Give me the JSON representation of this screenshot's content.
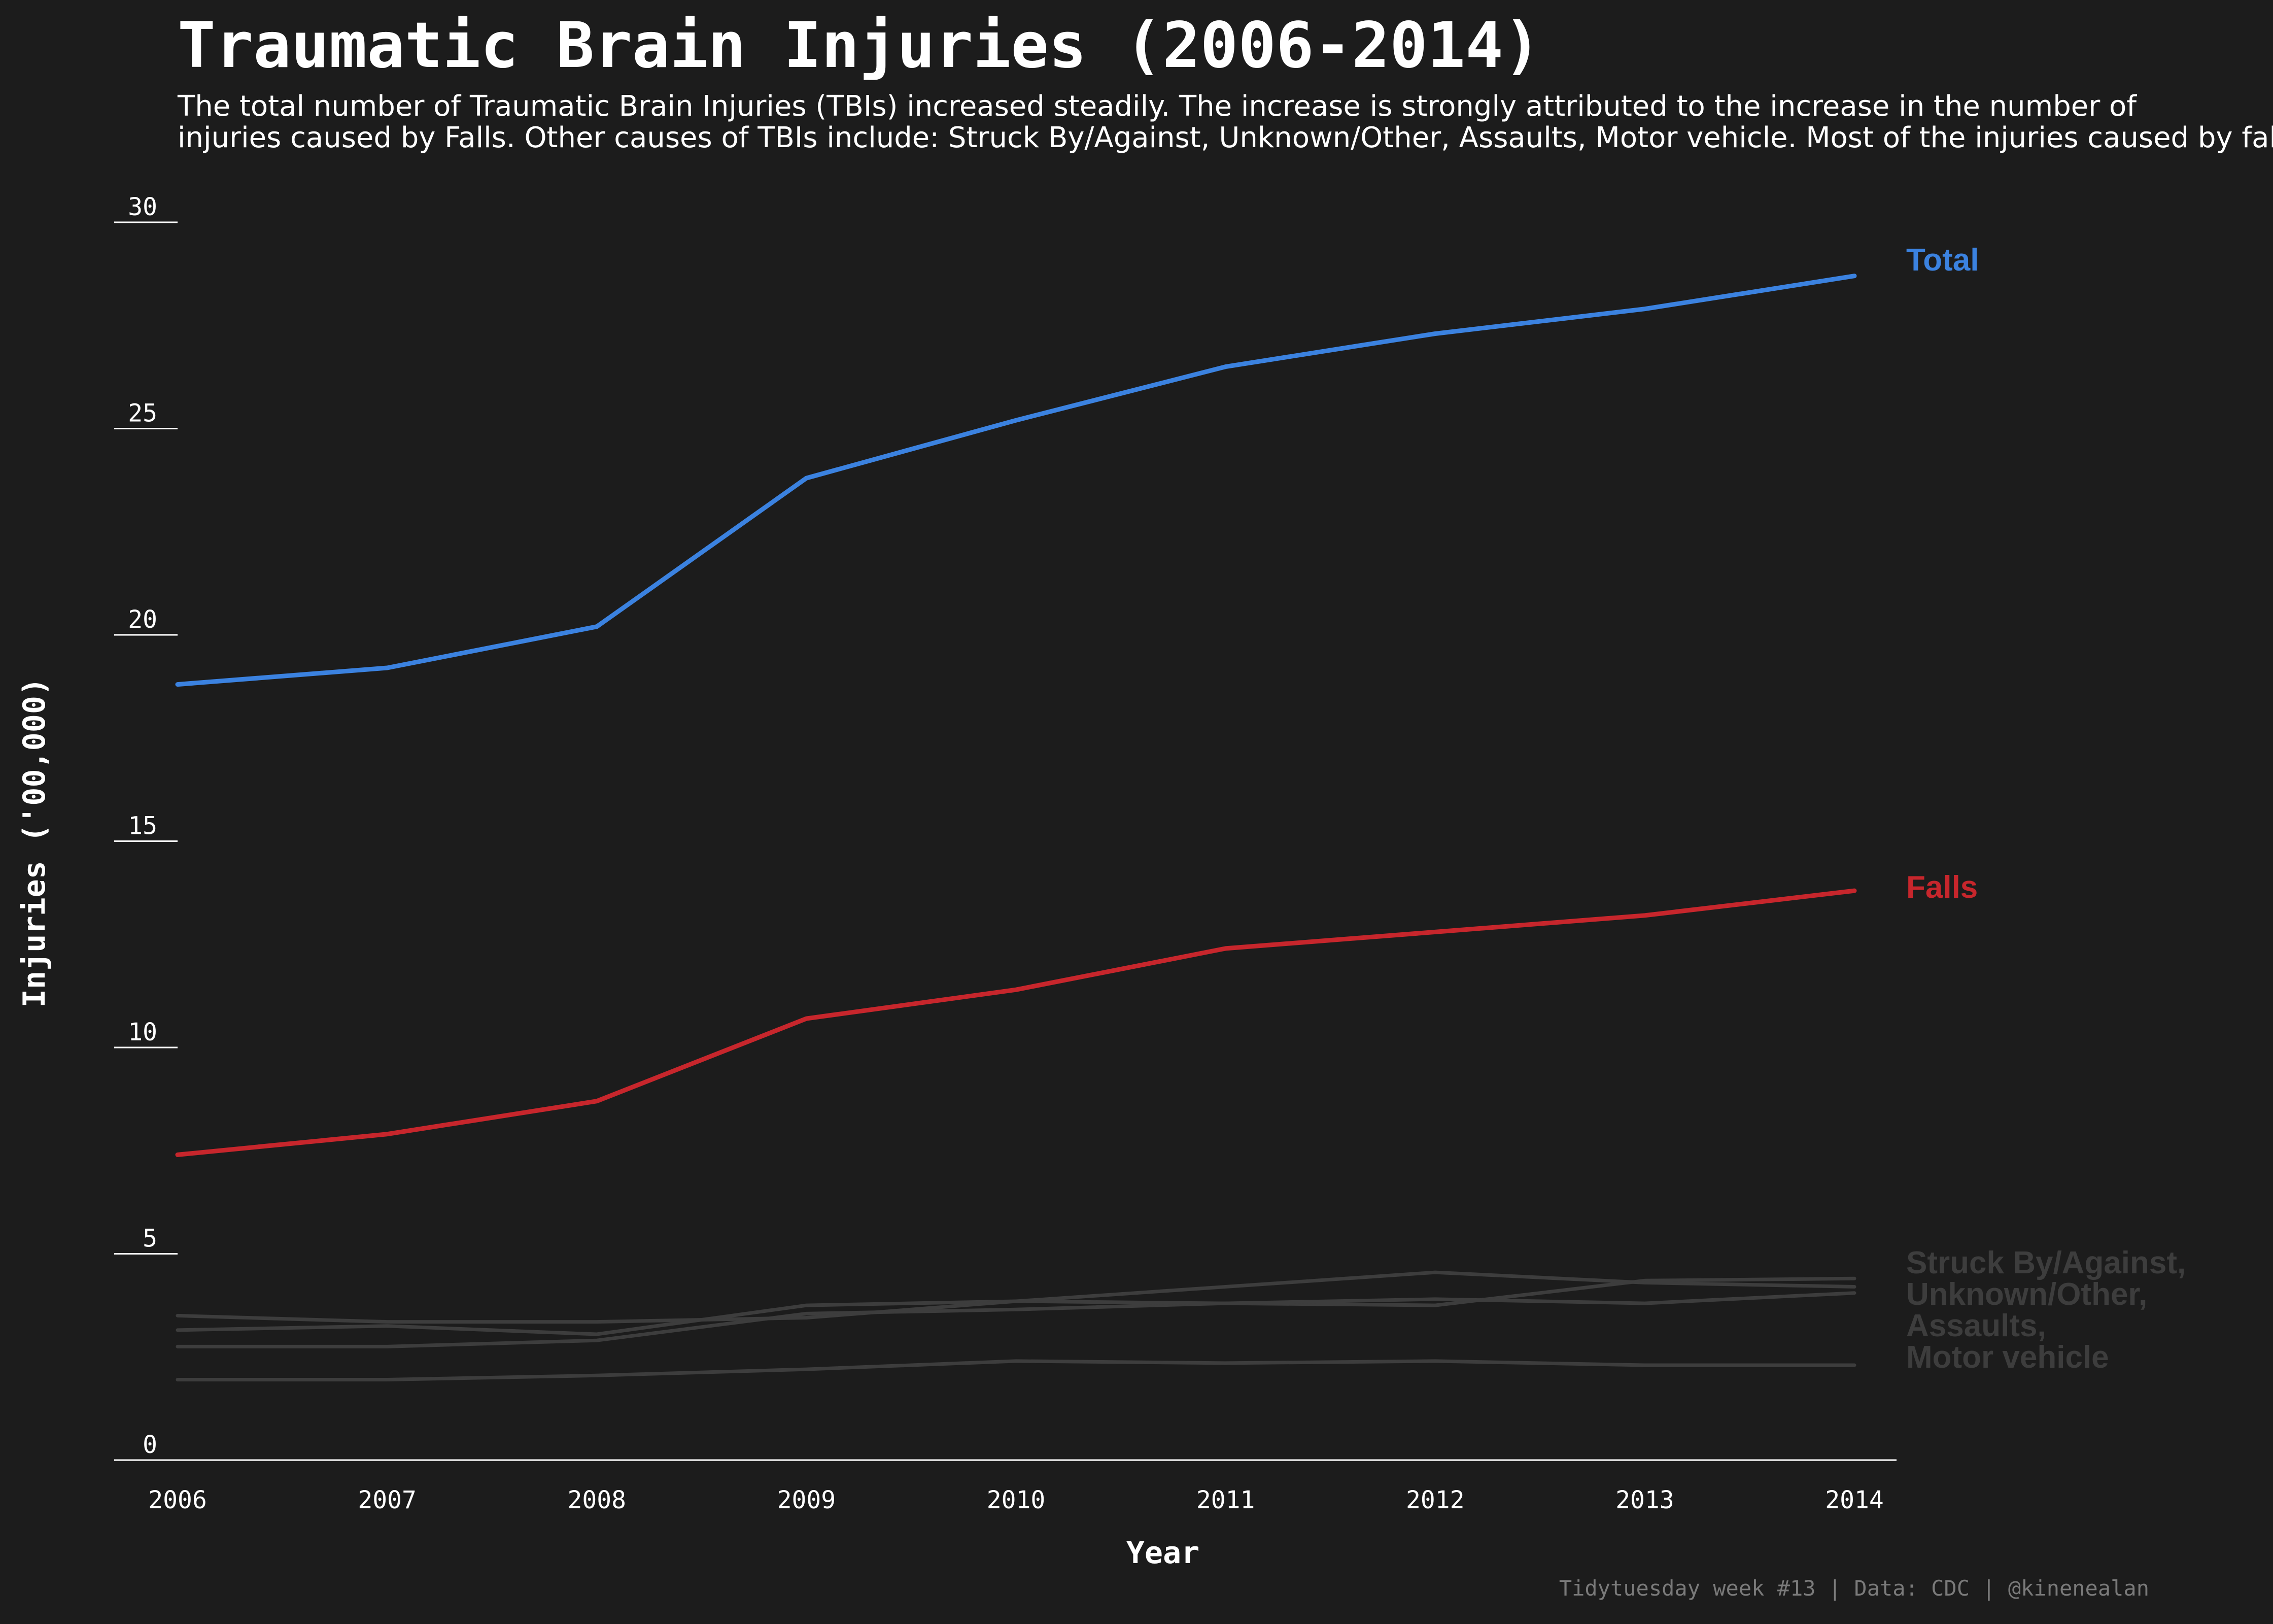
{
  "chart_data": {
    "type": "line",
    "title": "Traumatic Brain Injuries (2006-2014)",
    "subtitle_lines": [
      "The total number of Traumatic Brain Injuries (TBIs) increased steadily. The increase is strongly attributed to the increase in the number of",
      "injuries caused by Falls. Other causes of TBIs include: Struck By/Against, Unknown/Other, Assaults, Motor vehicle. Most of the injuries caused by falls"
    ],
    "xlabel": "Year",
    "ylabel": "Injuries ('00,000)",
    "x": [
      2006,
      2007,
      2008,
      2009,
      2010,
      2011,
      2012,
      2013,
      2014
    ],
    "xlim": [
      2006,
      2014
    ],
    "ylim": [
      0,
      30
    ],
    "yticks": [
      0,
      5,
      10,
      15,
      20,
      25,
      30
    ],
    "grid": false,
    "series": [
      {
        "name": "Total",
        "color": "#3b82e0",
        "values": [
          18.8,
          19.2,
          20.2,
          23.8,
          25.2,
          26.5,
          27.3,
          27.9,
          28.7
        ]
      },
      {
        "name": "Falls",
        "color": "#c7262c",
        "values": [
          7.4,
          7.9,
          8.7,
          10.7,
          11.4,
          12.4,
          12.8,
          13.2,
          13.8
        ]
      },
      {
        "color": "#3d3d3d",
        "values": [
          3.5,
          3.35,
          3.35,
          3.45,
          3.85,
          4.2,
          4.55,
          4.3,
          4.2
        ]
      },
      {
        "color": "#3d3d3d",
        "values": [
          3.15,
          3.25,
          3.05,
          3.75,
          3.85,
          3.8,
          3.9,
          3.8,
          4.05
        ]
      },
      {
        "color": "#3d3d3d",
        "values": [
          2.75,
          2.75,
          2.9,
          3.55,
          3.65,
          3.8,
          3.75,
          4.35,
          4.4
        ]
      },
      {
        "color": "#3d3d3d",
        "values": [
          1.95,
          1.95,
          2.05,
          2.2,
          2.4,
          2.35,
          2.4,
          2.3,
          2.3
        ]
      }
    ],
    "annotations": [
      {
        "text": "Total",
        "color": "#3b82e0",
        "anchor_value": 29.1
      },
      {
        "text": "Falls",
        "color": "#c7262c",
        "anchor_value": 13.9
      },
      {
        "lines": [
          "Struck By/Against,",
          "Unknown/Other,",
          "Assaults,",
          "Motor vehicle"
        ],
        "color": "#3d3d3d",
        "anchor_value": 4.8
      }
    ],
    "caption": "Tidytuesday week #13 | Data: CDC | @kinenealan"
  }
}
